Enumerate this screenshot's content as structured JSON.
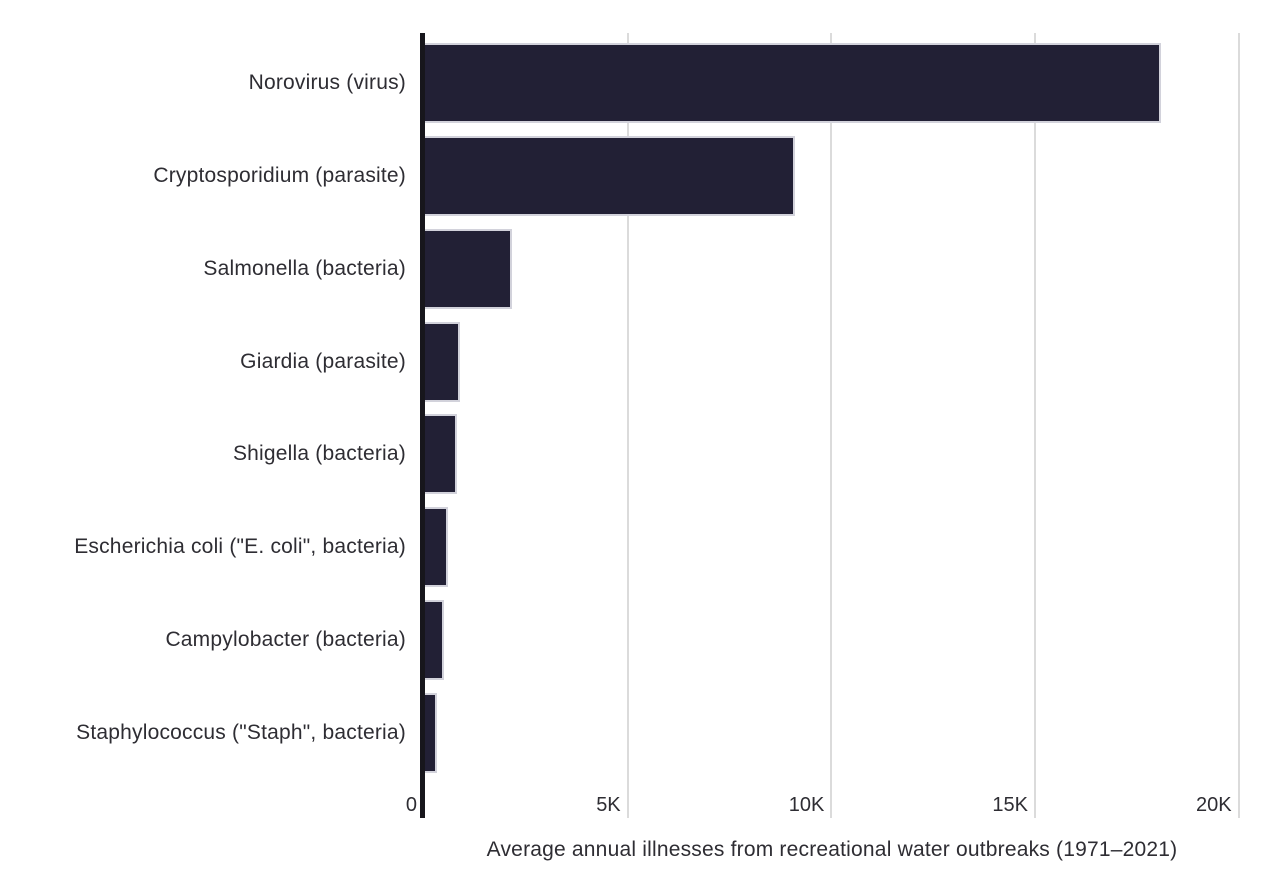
{
  "chart_data": {
    "type": "bar",
    "orientation": "horizontal",
    "title": "",
    "xlabel": "Average annual illnesses from recreational water outbreaks (1971–2021)",
    "ylabel": "",
    "categories": [
      "Norovirus (virus)",
      "Cryptosporidium (parasite)",
      "Salmonella (bacteria)",
      "Giardia (parasite)",
      "Shigella (bacteria)",
      "Escherichia coli (\"E. coli\", bacteria)",
      "Campylobacter (bacteria)",
      "Staphylococcus (\"Staph\", bacteria)"
    ],
    "values": [
      18100,
      9100,
      2170,
      880,
      820,
      590,
      490,
      330
    ],
    "xlim": [
      0,
      20500
    ],
    "xticks": [
      {
        "value": 0,
        "label": "0"
      },
      {
        "value": 5000,
        "label": "5K"
      },
      {
        "value": 10000,
        "label": "10K"
      },
      {
        "value": 15000,
        "label": "15K"
      },
      {
        "value": 20000,
        "label": "20K"
      }
    ],
    "grid": "vertical",
    "legend": "none",
    "colors": {
      "bar": "#222035",
      "bar_outline": "#d2d2db",
      "gridline": "#dbdbdb",
      "axis": "#17161c",
      "text": "#2e2d33",
      "background": "#ffffff"
    }
  }
}
